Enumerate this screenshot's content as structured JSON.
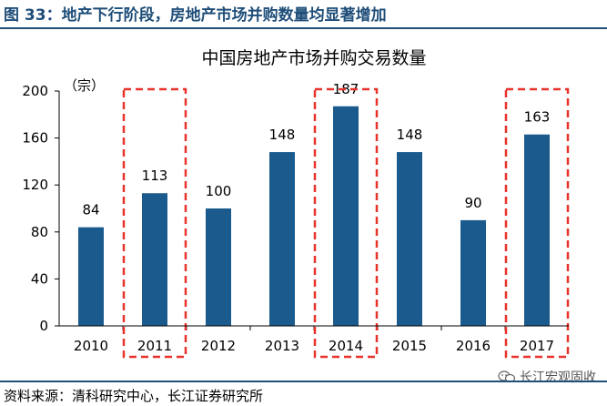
{
  "figure_caption": "图 33：地产下行阶段，房地产市场并购数量均显著增加",
  "source_note": "资料来源：清科研究中心，长江证券研究所",
  "watermark": {
    "text": "长江宏观固收",
    "icon": "wechat-icon"
  },
  "colors": {
    "bar": "#1b5a8c",
    "highlight_box": "#e8322a",
    "caption": "#1f4e79"
  },
  "chart_data": {
    "type": "bar",
    "title": "中国房地产市场并购交易数量",
    "ylabel": "（宗）",
    "xlabel": "",
    "categories": [
      "2010",
      "2011",
      "2012",
      "2013",
      "2014",
      "2015",
      "2016",
      "2017"
    ],
    "values": [
      84,
      113,
      100,
      148,
      187,
      148,
      90,
      163
    ],
    "value_labels": [
      "84",
      "113",
      "100",
      "148",
      "187",
      "148",
      "90",
      "163"
    ],
    "ylim": [
      0,
      200
    ],
    "yticks": [
      "0",
      "40",
      "80",
      "120",
      "160",
      "200"
    ],
    "grid": false,
    "highlighted_categories": [
      "2011",
      "2014",
      "2017"
    ]
  }
}
